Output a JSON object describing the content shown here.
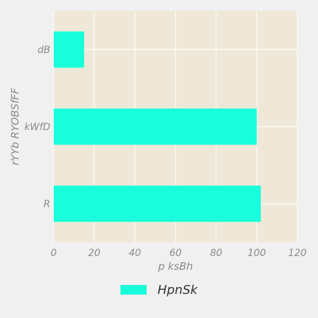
{
  "chart_data": {
    "type": "bar",
    "orientation": "horizontal",
    "categories": [
      "dB",
      "kWfD",
      "R"
    ],
    "series": [
      {
        "name": "HpnSk",
        "values": [
          15,
          100,
          102
        ]
      }
    ],
    "xlabel": "p ksBh",
    "ylabel": "rYYb RYOBSfFF",
    "xlim": [
      0,
      120
    ],
    "xticks": [
      0,
      20,
      40,
      60,
      80,
      100,
      120
    ],
    "grid": true,
    "legend_position": "bottom-center",
    "colors": {
      "bar": "#19ffdc",
      "plot_background": "#efe8d8",
      "grid": "#ffffff",
      "text": "#8a8a8a"
    }
  }
}
